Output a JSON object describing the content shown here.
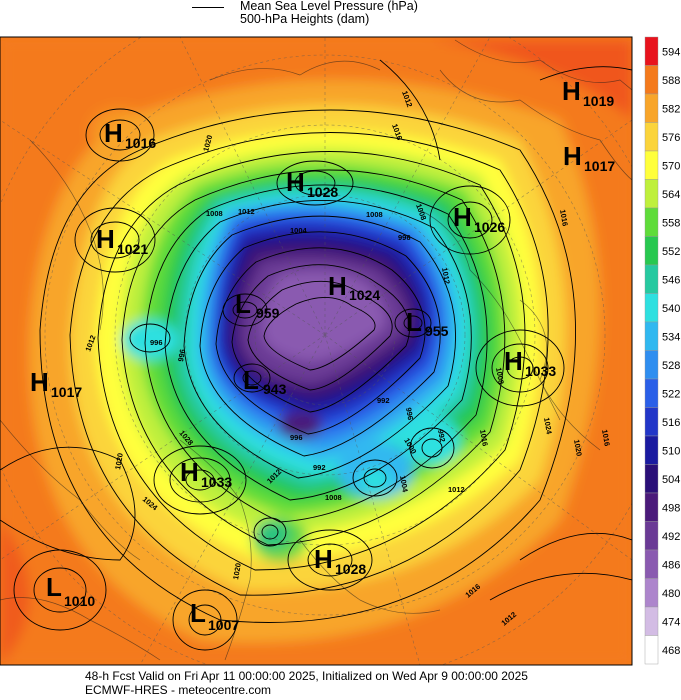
{
  "legend": {
    "mslp_label": "Mean Sea Level Pressure (hPa)",
    "heights_label": "500-hPa Heights (dam)"
  },
  "colorbar": {
    "levels": [
      "594",
      "588",
      "582",
      "576",
      "570",
      "564",
      "558",
      "552",
      "546",
      "540",
      "534",
      "528",
      "522",
      "516",
      "510",
      "504",
      "498",
      "492",
      "486",
      "480",
      "474",
      "468"
    ],
    "colors": [
      "#e8131d",
      "#f47a1c",
      "#f8a52a",
      "#fbd43b",
      "#ffff3c",
      "#bff03c",
      "#5fdc3a",
      "#28c850",
      "#26c9a0",
      "#2ee0e0",
      "#30b8f0",
      "#2f8ef0",
      "#2a5fe8",
      "#2236c8",
      "#1a1aa0",
      "#2a0f78",
      "#4a1a7a",
      "#6a3a95",
      "#8a5ab0",
      "#ad85cc",
      "#d3bce4",
      "#ffffff"
    ]
  },
  "centers": [
    {
      "type": "H",
      "value": "1016"
    },
    {
      "type": "H",
      "value": "1021"
    },
    {
      "type": "H",
      "value": "1017"
    },
    {
      "type": "H",
      "value": "1028"
    },
    {
      "type": "H",
      "value": "1026"
    },
    {
      "type": "H",
      "value": "1019"
    },
    {
      "type": "H",
      "value": "1017"
    },
    {
      "type": "H",
      "value": "1033"
    },
    {
      "type": "H",
      "value": "1033"
    },
    {
      "type": "H",
      "value": "1028"
    },
    {
      "type": "H",
      "value": "1024"
    },
    {
      "type": "L",
      "value": "959"
    },
    {
      "type": "L",
      "value": "943"
    },
    {
      "type": "L",
      "value": "955"
    },
    {
      "type": "L",
      "value": "1010"
    },
    {
      "type": "L",
      "value": "1007"
    }
  ],
  "isobar_labels": [
    "1012",
    "1016",
    "1020",
    "1008",
    "1004",
    "1000",
    "996",
    "992",
    "1024",
    "1028"
  ],
  "footer": {
    "line1": "48-h Fcst Valid on Fri Apr 11 00:00:00 2025, Initialized on Wed Apr  9 00:00:00 2025",
    "line2": "ECMWF-HRES  - meteocentre.com"
  }
}
